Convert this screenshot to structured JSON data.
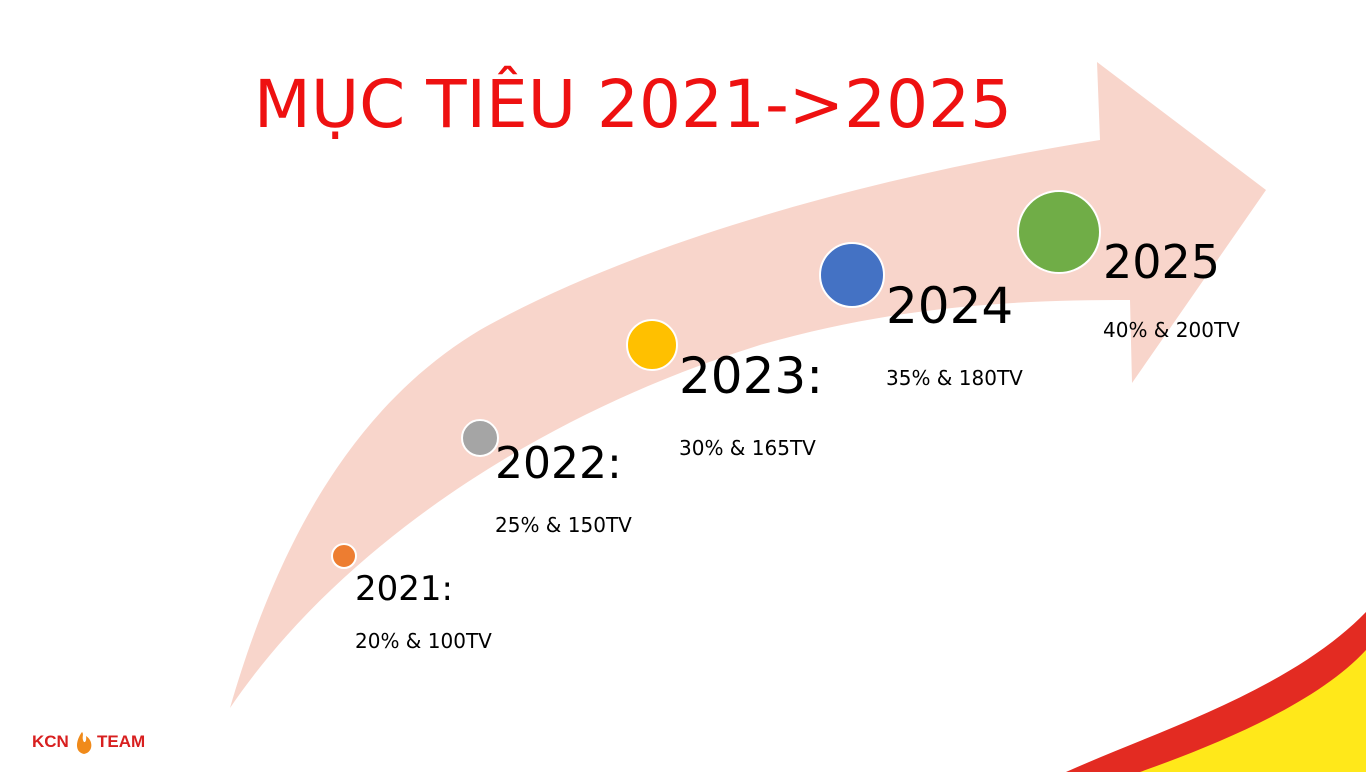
{
  "title": "MỤC TIÊU 2021->2025",
  "milestones": [
    {
      "year": "2021:",
      "detail": "20% & 100TV",
      "color": "#ed7d31"
    },
    {
      "year": "2022:",
      "detail": "25% & 150TV",
      "color": "#a5a5a5"
    },
    {
      "year": "2023:",
      "detail": "30% & 165TV",
      "color": "#ffc000"
    },
    {
      "year": "2024",
      "detail": "35% & 180TV",
      "color": "#4472c4"
    },
    {
      "year": "2025",
      "detail": "40% & 200TV",
      "color": "#70ad47"
    }
  ],
  "logo": {
    "left": "KCN",
    "right": "TEAM"
  }
}
